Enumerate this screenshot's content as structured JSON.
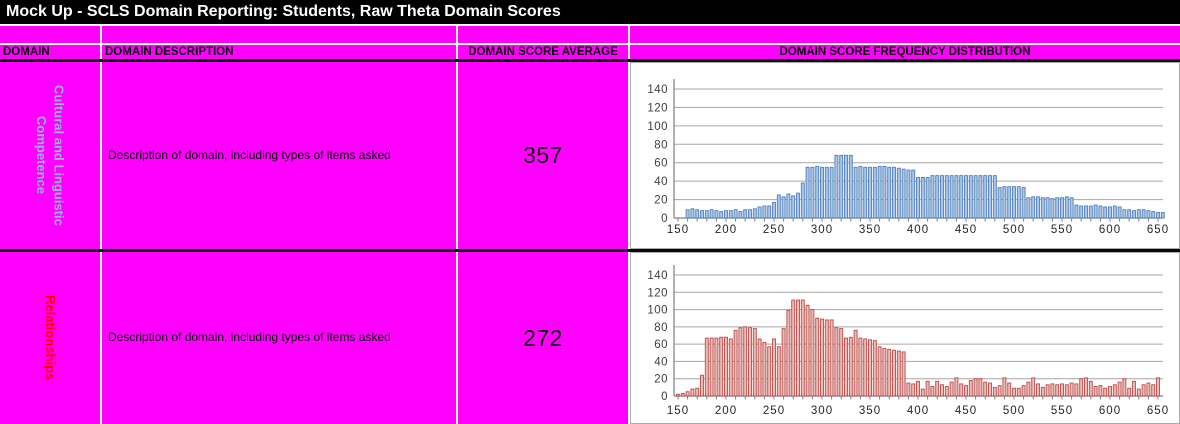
{
  "title": "Mock Up - SCLS Domain Reporting: Students, Raw Theta Domain Scores",
  "table": {
    "headers": {
      "domain": "DOMAIN",
      "description": "DOMAIN DESCRIPTION",
      "average": "DOMAIN SCORE AVERAGE",
      "distribution": "DOMAIN SCORE FREQUENCY DISTRIBUTION"
    },
    "rows": [
      {
        "domain": "Cultural and Linguistic Competence",
        "domain_color": "#95B3D7",
        "description": "Description of domain, including types of items asked",
        "average": "357"
      },
      {
        "domain": "Relationships",
        "domain_color": "#FF0000",
        "description": "Description of domain, including types of items asked",
        "average": "272"
      }
    ]
  },
  "colors": {
    "table_background": "#FF00FF",
    "title_bar": "#000000",
    "title_text": "#FFFFFF",
    "gridline": "#A6A6A6",
    "axis": "#808080",
    "tick_label": "#3F3F3F"
  },
  "chart_data": [
    {
      "type": "bar",
      "title": "",
      "xlabel": "",
      "ylabel": "",
      "legend": "none",
      "grid": "horizontal",
      "x_start": 160,
      "x_step": 5,
      "xlim": [
        145,
        660
      ],
      "ylim": [
        0,
        140
      ],
      "xticks": [
        150,
        200,
        250,
        300,
        350,
        400,
        450,
        500,
        550,
        600,
        650
      ],
      "yticks": [
        0,
        20,
        40,
        60,
        80,
        100,
        120,
        140
      ],
      "bar_fill": "#ADC5E7",
      "bar_edge": "#4F81BD",
      "values": [
        9,
        10,
        9,
        8,
        8,
        9,
        8,
        7,
        8,
        8,
        9,
        7,
        9,
        9,
        10,
        12,
        13,
        13,
        17,
        25,
        23,
        26,
        24,
        27,
        38,
        55,
        55,
        56,
        55,
        55,
        55,
        68,
        68,
        68,
        68,
        55,
        56,
        55,
        55,
        55,
        56,
        56,
        55,
        55,
        54,
        53,
        52,
        52,
        44,
        44,
        44,
        46,
        46,
        46,
        46,
        46,
        46,
        46,
        46,
        46,
        46,
        46,
        46,
        46,
        46,
        33,
        34,
        34,
        34,
        34,
        33,
        22,
        23,
        23,
        22,
        22,
        21,
        22,
        22,
        23,
        22,
        14,
        13,
        13,
        13,
        14,
        13,
        12,
        12,
        13,
        12,
        9,
        9,
        8,
        9,
        9,
        8,
        7,
        6,
        6
      ]
    },
    {
      "type": "bar",
      "title": "",
      "xlabel": "",
      "ylabel": "",
      "legend": "none",
      "grid": "horizontal",
      "x_start": 150,
      "x_step": 5,
      "xlim": [
        145,
        660
      ],
      "ylim": [
        0,
        140
      ],
      "xticks": [
        150,
        200,
        250,
        300,
        350,
        400,
        450,
        500,
        550,
        600,
        650
      ],
      "yticks": [
        0,
        20,
        40,
        60,
        80,
        100,
        120,
        140
      ],
      "bar_fill": "#E7BCBB",
      "bar_edge": "#BF4B47",
      "values": [
        2,
        3,
        5,
        8,
        9,
        24,
        67,
        67,
        67,
        68,
        68,
        66,
        76,
        79,
        80,
        79,
        78,
        66,
        62,
        57,
        66,
        57,
        78,
        99,
        111,
        111,
        111,
        105,
        100,
        90,
        89,
        88,
        88,
        79,
        78,
        67,
        68,
        76,
        67,
        66,
        65,
        64,
        57,
        55,
        54,
        53,
        52,
        51,
        15,
        14,
        17,
        8,
        17,
        11,
        17,
        13,
        11,
        16,
        21,
        14,
        12,
        18,
        20,
        20,
        16,
        15,
        10,
        12,
        21,
        15,
        9,
        9,
        12,
        16,
        21,
        14,
        10,
        13,
        14,
        13,
        14,
        13,
        15,
        14,
        20,
        21,
        17,
        11,
        12,
        9,
        11,
        13,
        16,
        20,
        9,
        17,
        8,
        13,
        15,
        13,
        21
      ]
    }
  ]
}
